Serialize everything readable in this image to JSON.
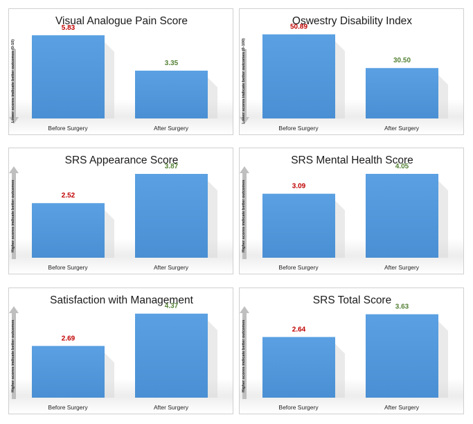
{
  "colors": {
    "bar": "#4a8fd3",
    "bar_top": "#5aa0e2",
    "before_value": "#c00000",
    "after_value": "#548235",
    "arrow": "#bfbfbf"
  },
  "chart_data": [
    {
      "type": "bar",
      "title": "Visual Analogue Pain Score",
      "categories": [
        "Before Surgery",
        "After Surgery"
      ],
      "values": [
        5.83,
        3.35
      ],
      "value_labels": [
        "5.83",
        "3.35"
      ],
      "ylabel": "Lower scores indicate better outcomes (0-10)",
      "arrow": "down",
      "ylim": [
        0,
        6.6
      ]
    },
    {
      "type": "bar",
      "title": "Oswestry Disability Index",
      "categories": [
        "Before Surgery",
        "After Surgery"
      ],
      "values": [
        50.89,
        30.5
      ],
      "value_labels": [
        "50.89",
        "30.50"
      ],
      "ylabel": "Lower scores indicate better outcomes (0-100)",
      "arrow": "down",
      "ylim": [
        0,
        57
      ]
    },
    {
      "type": "bar",
      "title": "SRS Appearance Score",
      "categories": [
        "Before Surgery",
        "After Surgery"
      ],
      "values": [
        2.52,
        3.87
      ],
      "value_labels": [
        "2.52",
        "3.87"
      ],
      "ylabel": "Higher scores indicate better outcomes",
      "arrow": "up",
      "ylim": [
        0,
        4.35
      ]
    },
    {
      "type": "bar",
      "title": "SRS Mental Health Score",
      "categories": [
        "Before Surgery",
        "After Surgery"
      ],
      "values": [
        3.09,
        4.05
      ],
      "value_labels": [
        "3.09",
        "4.05"
      ],
      "ylabel": "Higher scores indicate better outcomes",
      "arrow": "up",
      "ylim": [
        0,
        4.55
      ]
    },
    {
      "type": "bar",
      "title": "Satisfaction with Management",
      "categories": [
        "Before Surgery",
        "After Surgery"
      ],
      "values": [
        2.69,
        4.37
      ],
      "value_labels": [
        "2.69",
        "4.37"
      ],
      "ylabel": "Higher scores indicate better outcomes",
      "arrow": "up",
      "ylim": [
        0,
        4.9
      ]
    },
    {
      "type": "bar",
      "title": "SRS Total Score",
      "categories": [
        "Before Surgery",
        "After Surgery"
      ],
      "values": [
        2.64,
        3.63
      ],
      "value_labels": [
        "2.64",
        "3.63"
      ],
      "ylabel": "Higher scores indicate better outcomes",
      "arrow": "up",
      "ylim": [
        0,
        4.1
      ]
    }
  ]
}
